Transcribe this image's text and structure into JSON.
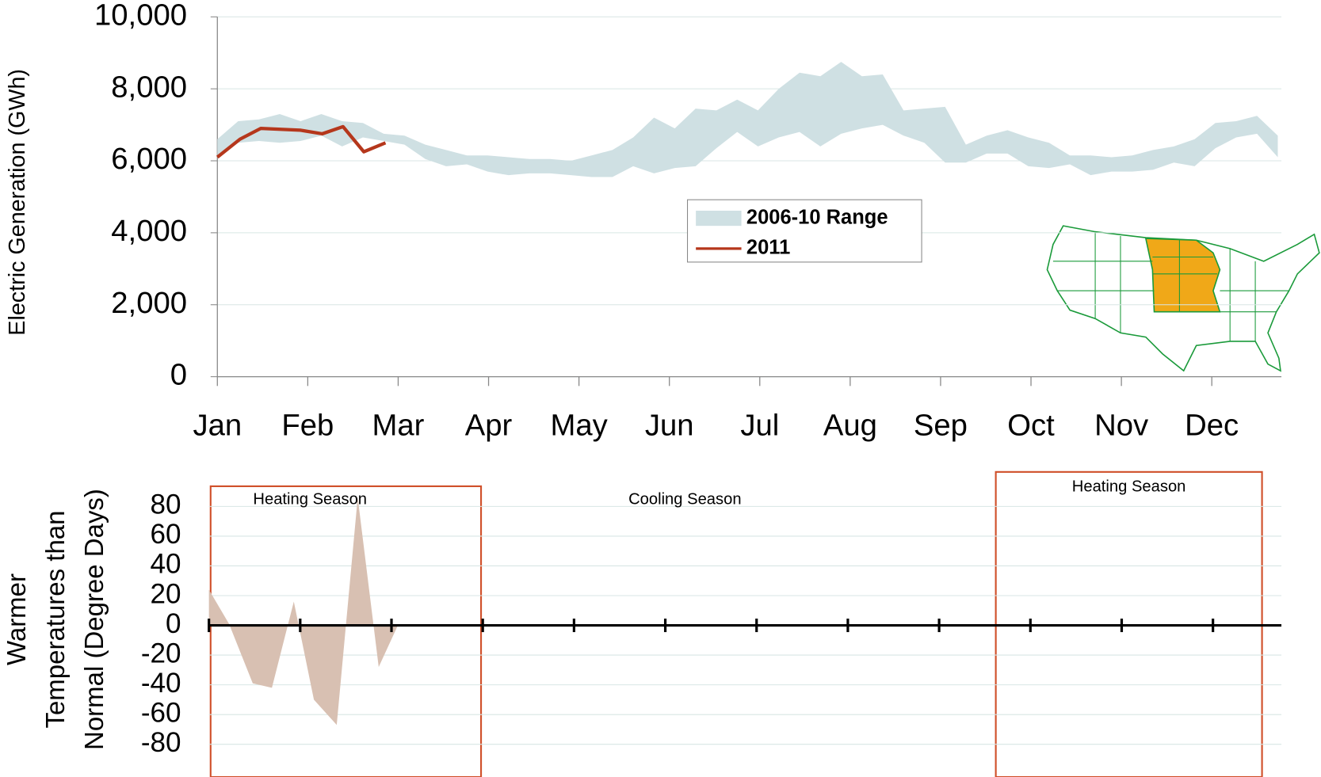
{
  "chart_data": [
    {
      "type": "line",
      "ylabel": "Electric Generation (GWh)",
      "xlim": [
        0,
        11.77
      ],
      "xticks": [
        {
          "value": 0,
          "label": "Jan"
        },
        {
          "value": 1,
          "label": "Feb"
        },
        {
          "value": 2,
          "label": "Mar"
        },
        {
          "value": 3,
          "label": "Apr"
        },
        {
          "value": 4,
          "label": "May"
        },
        {
          "value": 5,
          "label": "Jun"
        },
        {
          "value": 6,
          "label": "Jul"
        },
        {
          "value": 7,
          "label": "Aug"
        },
        {
          "value": 8,
          "label": "Sep"
        },
        {
          "value": 9,
          "label": "Oct"
        },
        {
          "value": 10,
          "label": "Nov"
        },
        {
          "value": 11,
          "label": "Dec"
        }
      ],
      "ylim": [
        0,
        10000
      ],
      "yticks": [
        0,
        {
          "value": 2000,
          "label": "2,000"
        },
        {
          "value": 4000,
          "label": "4,000"
        },
        {
          "value": 6000,
          "label": "6,000"
        },
        {
          "value": 8000,
          "label": "8,000"
        },
        {
          "value": 10000,
          "label": "10,000"
        }
      ],
      "grid": true,
      "legend": "center",
      "series": [
        {
          "name": "2006-10 Range",
          "type": "range",
          "color": "#cfe0e3",
          "x": [
            0,
            0.23,
            0.46,
            0.69,
            0.92,
            1.15,
            1.38,
            1.61,
            1.84,
            2.07,
            2.3,
            2.53,
            2.76,
            2.99,
            3.22,
            3.45,
            3.68,
            3.91,
            4.14,
            4.37,
            4.6,
            4.83,
            5.06,
            5.29,
            5.52,
            5.75,
            5.98,
            6.21,
            6.44,
            6.67,
            6.9,
            7.13,
            7.36,
            7.59,
            7.82,
            8.05,
            8.28,
            8.51,
            8.74,
            8.97,
            9.2,
            9.43,
            9.66,
            9.89,
            10.12,
            10.35,
            10.58,
            10.81,
            11.04,
            11.27,
            11.5,
            11.73
          ],
          "high": [
            6600,
            7100,
            7150,
            7300,
            7100,
            7300,
            7100,
            7050,
            6750,
            6700,
            6450,
            6300,
            6150,
            6150,
            6100,
            6050,
            6050,
            6000,
            6150,
            6300,
            6650,
            7200,
            6900,
            7450,
            7400,
            7700,
            7400,
            8000,
            8450,
            8350,
            8750,
            8350,
            8400,
            7400,
            7450,
            7500,
            6450,
            6700,
            6850,
            6650,
            6500,
            6150,
            6150,
            6100,
            6150,
            6300,
            6400,
            6600,
            7050,
            7100,
            7250,
            6700
          ],
          "low": [
            6150,
            6500,
            6550,
            6500,
            6550,
            6700,
            6400,
            6650,
            6550,
            6450,
            6050,
            5850,
            5900,
            5700,
            5600,
            5650,
            5650,
            5600,
            5550,
            5550,
            5850,
            5650,
            5800,
            5850,
            6350,
            6800,
            6400,
            6650,
            6800,
            6400,
            6750,
            6900,
            7000,
            6700,
            6500,
            5950,
            5950,
            6200,
            6200,
            5850,
            5800,
            5900,
            5600,
            5700,
            5700,
            5750,
            5950,
            5850,
            6350,
            6650,
            6750,
            6100
          ]
        },
        {
          "name": "2011",
          "type": "line",
          "color": "#b5371c",
          "x": [
            0,
            0.25,
            0.48,
            0.92,
            1.16,
            1.39,
            1.62,
            1.86
          ],
          "values": [
            6100,
            6600,
            6900,
            6850,
            6750,
            6950,
            6250,
            6500
          ]
        }
      ]
    },
    {
      "type": "area",
      "ylabel": [
        "Warmer",
        "Temperatures than",
        "Normal (Degree Days)"
      ],
      "xlim": [
        0,
        11.75
      ],
      "xticks": [
        0,
        1,
        2,
        3,
        4,
        5,
        6,
        7,
        8,
        9,
        10,
        11
      ],
      "ylim": [
        -102,
        93
      ],
      "yticks": [
        -80,
        -60,
        -40,
        -20,
        0,
        20,
        40,
        60,
        80
      ],
      "grid": true,
      "annotations": [
        "Heating Season",
        "Cooling Season",
        "Heating Season"
      ],
      "series": [
        {
          "color": "#d8c0b2",
          "x": [
            0,
            0.22,
            0.48,
            0.69,
            0.93,
            1.15,
            1.4,
            1.63,
            1.86,
            2.07
          ],
          "values": [
            24,
            1,
            -39,
            -42,
            16,
            -50,
            -67,
            86,
            -28,
            0
          ]
        }
      ]
    }
  ]
}
